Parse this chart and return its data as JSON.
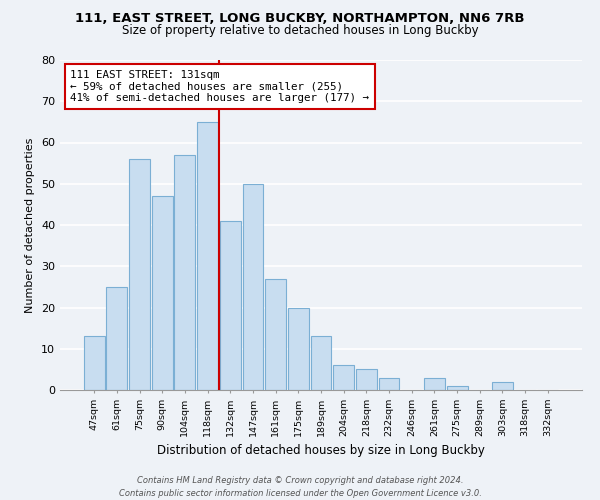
{
  "title": "111, EAST STREET, LONG BUCKBY, NORTHAMPTON, NN6 7RB",
  "subtitle": "Size of property relative to detached houses in Long Buckby",
  "xlabel": "Distribution of detached houses by size in Long Buckby",
  "ylabel": "Number of detached properties",
  "bar_labels": [
    "47sqm",
    "61sqm",
    "75sqm",
    "90sqm",
    "104sqm",
    "118sqm",
    "132sqm",
    "147sqm",
    "161sqm",
    "175sqm",
    "189sqm",
    "204sqm",
    "218sqm",
    "232sqm",
    "246sqm",
    "261sqm",
    "275sqm",
    "289sqm",
    "303sqm",
    "318sqm",
    "332sqm"
  ],
  "bar_values": [
    13,
    25,
    56,
    47,
    57,
    65,
    41,
    50,
    27,
    20,
    13,
    6,
    5,
    3,
    0,
    3,
    1,
    0,
    2,
    0,
    0
  ],
  "bar_color": "#c8ddf0",
  "bar_edge_color": "#7bafd4",
  "vline_color": "#cc0000",
  "annotation_line1": "111 EAST STREET: 131sqm",
  "annotation_line2": "← 59% of detached houses are smaller (255)",
  "annotation_line3": "41% of semi-detached houses are larger (177) →",
  "annotation_box_color": "#ffffff",
  "annotation_box_edge": "#cc0000",
  "ylim": [
    0,
    80
  ],
  "yticks": [
    0,
    10,
    20,
    30,
    40,
    50,
    60,
    70,
    80
  ],
  "footer_line1": "Contains HM Land Registry data © Crown copyright and database right 2024.",
  "footer_line2": "Contains public sector information licensed under the Open Government Licence v3.0.",
  "bg_color": "#eef2f7",
  "grid_color": "#ffffff",
  "title_fontsize": 9.5,
  "subtitle_fontsize": 8.5
}
